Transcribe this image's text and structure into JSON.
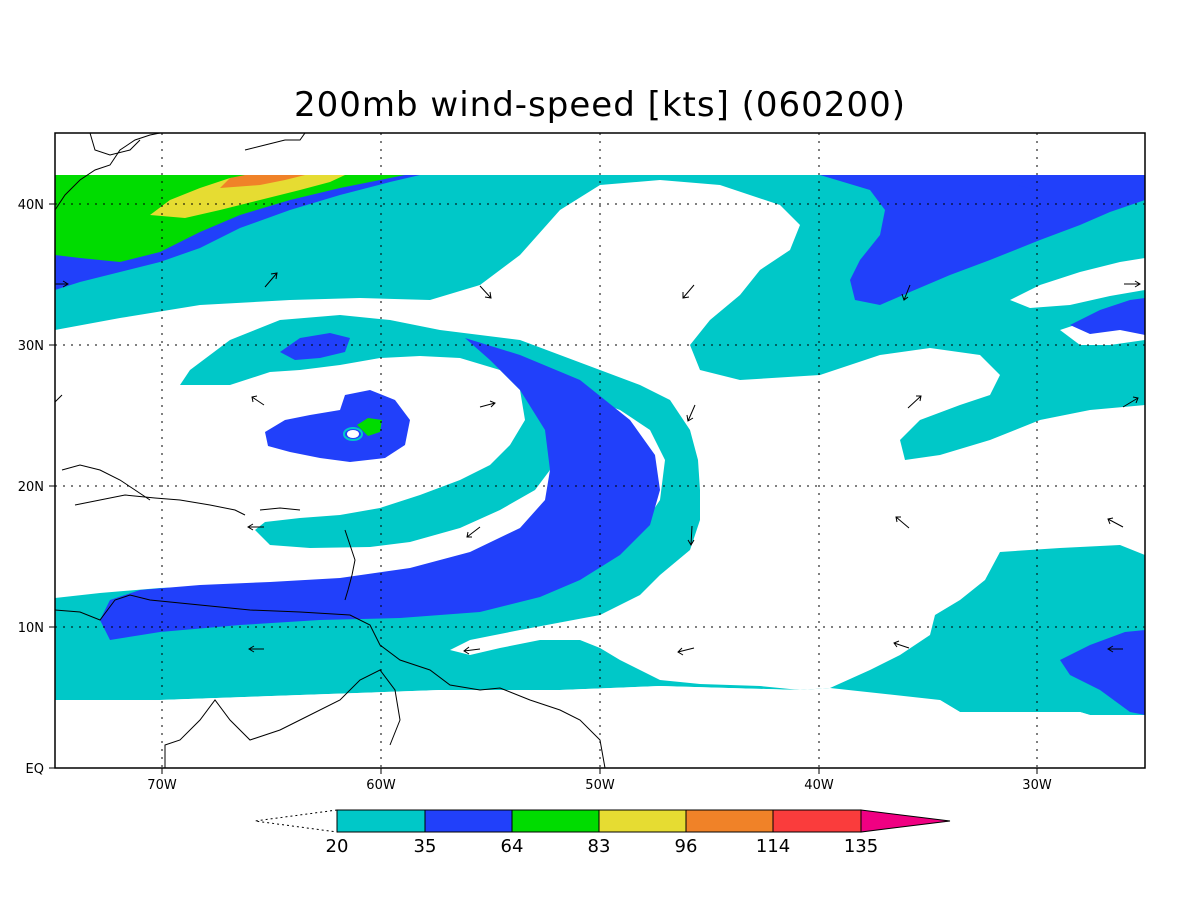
{
  "title": "200mb wind-speed [kts] (060200)",
  "axes": {
    "x_ticks": [
      "70W",
      "60W",
      "50W",
      "40W",
      "30W"
    ],
    "y_ticks": [
      "EQ",
      "10N",
      "20N",
      "30N",
      "40N"
    ]
  },
  "colors": {
    "cyan": "#00c8c8",
    "blue": "#2140fa",
    "green": "#00dc00",
    "yellow": "#e6dc32",
    "orange": "#f08228",
    "red": "#fa3c3c",
    "magenta": "#f00082",
    "coast": "#000000"
  },
  "colorbar": {
    "labels": [
      "20",
      "35",
      "64",
      "83",
      "96",
      "114",
      "135"
    ],
    "colors": [
      "#00c8c8",
      "#2140fa",
      "#00dc00",
      "#e6dc32",
      "#f08228",
      "#fa3c3c"
    ],
    "over_color": "#f00082"
  }
}
